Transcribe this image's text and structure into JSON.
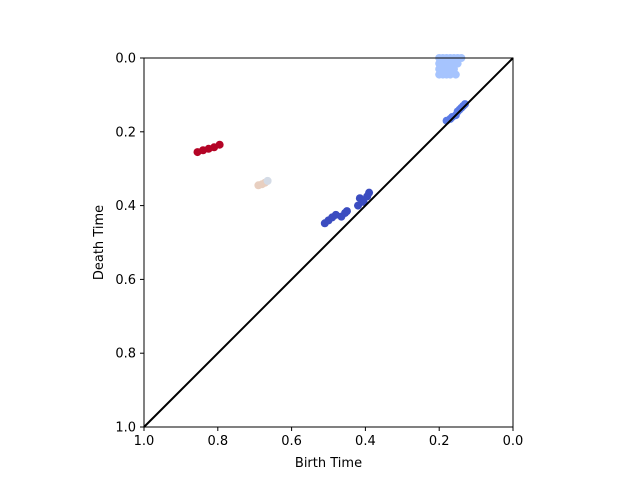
{
  "chart_data": {
    "type": "scatter",
    "xlabel": "Birth Time",
    "ylabel": "Death Time",
    "xlim": [
      1.0,
      0.0
    ],
    "ylim": [
      1.0,
      0.0
    ],
    "x_ticks": [
      "1.0",
      "0.8",
      "0.6",
      "0.4",
      "0.2",
      "0.0"
    ],
    "y_ticks": [
      "0.0",
      "0.2",
      "0.4",
      "0.6",
      "0.8",
      "1.0"
    ],
    "x_tick_values": [
      1.0,
      0.8,
      0.6,
      0.4,
      0.2,
      0.0
    ],
    "y_tick_values": [
      0.0,
      0.2,
      0.4,
      0.6,
      0.8,
      1.0
    ],
    "grid": false,
    "diagonal": {
      "from": [
        1.0,
        1.0
      ],
      "to": [
        0.0,
        0.0
      ],
      "color": "#000000"
    },
    "series": [
      {
        "color": "#b40426",
        "points": [
          [
            0.855,
            0.255
          ],
          [
            0.84,
            0.25
          ],
          [
            0.825,
            0.246
          ],
          [
            0.81,
            0.242
          ],
          [
            0.795,
            0.235
          ]
        ]
      },
      {
        "color": "#e8cfc0",
        "points": [
          [
            0.69,
            0.345
          ],
          [
            0.68,
            0.342
          ],
          [
            0.672,
            0.338
          ]
        ]
      },
      {
        "color": "#d4dbe6",
        "points": [
          [
            0.665,
            0.333
          ]
        ]
      },
      {
        "color": "#3b4cc0",
        "points": [
          [
            0.51,
            0.448
          ],
          [
            0.5,
            0.44
          ],
          [
            0.49,
            0.432
          ],
          [
            0.48,
            0.425
          ],
          [
            0.465,
            0.43
          ],
          [
            0.455,
            0.42
          ],
          [
            0.45,
            0.415
          ],
          [
            0.42,
            0.4
          ],
          [
            0.415,
            0.38
          ],
          [
            0.405,
            0.39
          ],
          [
            0.395,
            0.375
          ],
          [
            0.39,
            0.365
          ]
        ]
      },
      {
        "color": "#5b7be6",
        "points": [
          [
            0.18,
            0.17
          ],
          [
            0.17,
            0.165
          ],
          [
            0.165,
            0.16
          ],
          [
            0.155,
            0.155
          ],
          [
            0.15,
            0.145
          ],
          [
            0.145,
            0.14
          ],
          [
            0.14,
            0.135
          ],
          [
            0.135,
            0.13
          ],
          [
            0.13,
            0.125
          ]
        ]
      },
      {
        "color": "#a6c4fe",
        "points": [
          [
            0.2,
            0.0
          ],
          [
            0.19,
            0.0
          ],
          [
            0.18,
            0.0
          ],
          [
            0.17,
            0.0
          ],
          [
            0.16,
            0.0
          ],
          [
            0.15,
            0.0
          ],
          [
            0.14,
            0.0
          ],
          [
            0.2,
            0.015
          ],
          [
            0.19,
            0.015
          ],
          [
            0.18,
            0.015
          ],
          [
            0.17,
            0.015
          ],
          [
            0.16,
            0.015
          ],
          [
            0.15,
            0.015
          ],
          [
            0.2,
            0.03
          ],
          [
            0.19,
            0.03
          ],
          [
            0.18,
            0.03
          ],
          [
            0.17,
            0.03
          ],
          [
            0.16,
            0.03
          ],
          [
            0.2,
            0.045
          ],
          [
            0.19,
            0.045
          ],
          [
            0.18,
            0.045
          ],
          [
            0.17,
            0.045
          ],
          [
            0.155,
            0.045
          ]
        ]
      }
    ]
  }
}
